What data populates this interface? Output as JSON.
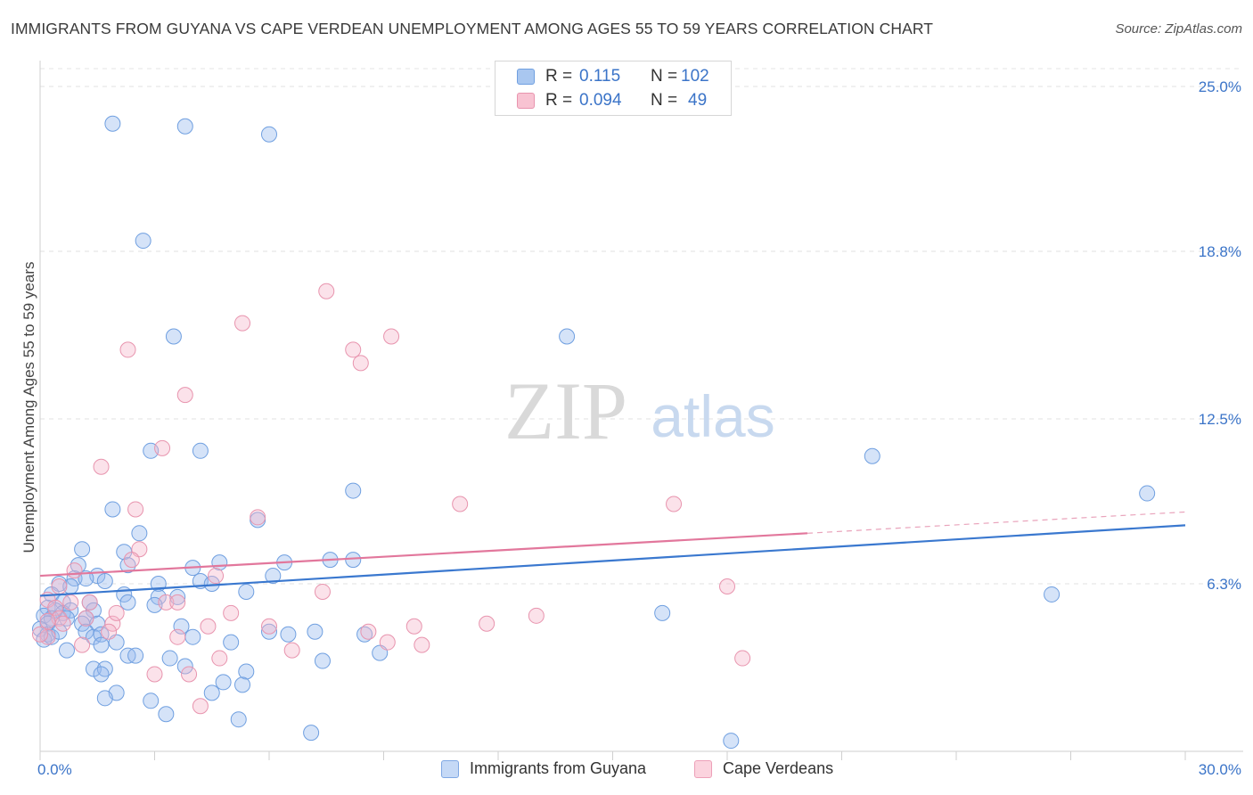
{
  "title": "IMMIGRANTS FROM GUYANA VS CAPE VERDEAN UNEMPLOYMENT AMONG AGES 55 TO 59 YEARS CORRELATION CHART",
  "source": "Source: ZipAtlas.com",
  "watermark": {
    "zip": "ZIP",
    "atlas": "atlas"
  },
  "legend": {
    "r_label": "R =",
    "n_label": "N =",
    "rows": [
      {
        "r": "0.115",
        "n": "102",
        "color": "#a9c7f0",
        "edge": "#6f9fe0"
      },
      {
        "r": "0.094",
        "n": "49",
        "color": "#f8c3d2",
        "edge": "#e894ae"
      }
    ]
  },
  "bottom_legend": [
    {
      "label": "Immigrants from Guyana",
      "color": "#c5d9f6",
      "edge": "#7fa8e4"
    },
    {
      "label": "Cape Verdeans",
      "color": "#fbd3de",
      "edge": "#eda0b8"
    }
  ],
  "chart_data": {
    "type": "scatter",
    "xlabel": "",
    "ylabel": "Unemployment Among Ages 55 to 59 years",
    "xlim": [
      0,
      30
    ],
    "ylim": [
      0,
      26
    ],
    "x_tick_labels": [
      "0.0%",
      "30.0%"
    ],
    "y_ticks": [
      6.3,
      12.5,
      18.8,
      25.0
    ],
    "y_tick_labels": [
      "6.3%",
      "12.5%",
      "18.8%",
      "25.0%"
    ],
    "grid": "horizontal dashed",
    "series": [
      {
        "name": "Immigrants from Guyana",
        "color": "#6f9fe0",
        "fill": "rgba(150,186,238,0.40)",
        "trend": {
          "x0": 0,
          "y0": 5.85,
          "x1": 30,
          "y1": 8.5
        },
        "points": [
          [
            1.9,
            23.6
          ],
          [
            3.8,
            23.5
          ],
          [
            6.0,
            23.2
          ],
          [
            2.7,
            19.2
          ],
          [
            3.5,
            15.6
          ],
          [
            13.8,
            15.6
          ],
          [
            2.9,
            11.3
          ],
          [
            4.2,
            11.3
          ],
          [
            21.8,
            11.1
          ],
          [
            8.2,
            9.8
          ],
          [
            1.9,
            9.1
          ],
          [
            29.0,
            9.7
          ],
          [
            5.7,
            8.7
          ],
          [
            2.6,
            8.2
          ],
          [
            1.1,
            7.6
          ],
          [
            2.2,
            7.5
          ],
          [
            4.7,
            7.1
          ],
          [
            6.4,
            7.1
          ],
          [
            7.6,
            7.2
          ],
          [
            8.2,
            7.2
          ],
          [
            1.0,
            7.0
          ],
          [
            2.3,
            7.0
          ],
          [
            4.0,
            6.9
          ],
          [
            1.5,
            6.6
          ],
          [
            0.9,
            6.5
          ],
          [
            1.2,
            6.5
          ],
          [
            1.7,
            6.4
          ],
          [
            0.5,
            6.3
          ],
          [
            3.1,
            6.3
          ],
          [
            4.2,
            6.4
          ],
          [
            4.5,
            6.3
          ],
          [
            0.8,
            6.2
          ],
          [
            6.1,
            6.6
          ],
          [
            0.3,
            5.9
          ],
          [
            2.2,
            5.9
          ],
          [
            3.1,
            5.8
          ],
          [
            5.4,
            6.0
          ],
          [
            26.5,
            5.9
          ],
          [
            3.6,
            5.8
          ],
          [
            0.6,
            5.6
          ],
          [
            2.3,
            5.6
          ],
          [
            3.0,
            5.5
          ],
          [
            1.3,
            5.6
          ],
          [
            0.2,
            5.4
          ],
          [
            0.4,
            5.3
          ],
          [
            0.6,
            5.2
          ],
          [
            0.8,
            5.3
          ],
          [
            1.4,
            5.3
          ],
          [
            0.1,
            5.1
          ],
          [
            0.3,
            5.0
          ],
          [
            0.7,
            5.0
          ],
          [
            1.2,
            5.0
          ],
          [
            0.2,
            4.8
          ],
          [
            1.1,
            4.8
          ],
          [
            1.5,
            4.8
          ],
          [
            3.7,
            4.7
          ],
          [
            6.0,
            4.5
          ],
          [
            6.5,
            4.4
          ],
          [
            7.2,
            4.5
          ],
          [
            8.5,
            4.4
          ],
          [
            16.3,
            5.2
          ],
          [
            0.0,
            4.6
          ],
          [
            0.2,
            4.4
          ],
          [
            0.1,
            4.2
          ],
          [
            0.3,
            4.3
          ],
          [
            0.5,
            4.5
          ],
          [
            1.2,
            4.5
          ],
          [
            1.4,
            4.3
          ],
          [
            1.6,
            4.4
          ],
          [
            4.0,
            4.3
          ],
          [
            1.6,
            4.0
          ],
          [
            2.0,
            4.1
          ],
          [
            0.7,
            3.8
          ],
          [
            5.0,
            4.1
          ],
          [
            8.9,
            3.7
          ],
          [
            2.3,
            3.6
          ],
          [
            2.5,
            3.6
          ],
          [
            3.4,
            3.5
          ],
          [
            7.4,
            3.4
          ],
          [
            1.4,
            3.1
          ],
          [
            1.7,
            3.1
          ],
          [
            3.8,
            3.2
          ],
          [
            5.4,
            3.0
          ],
          [
            1.6,
            2.9
          ],
          [
            4.8,
            2.6
          ],
          [
            5.3,
            2.5
          ],
          [
            2.0,
            2.2
          ],
          [
            4.5,
            2.2
          ],
          [
            1.7,
            2.0
          ],
          [
            2.9,
            1.9
          ],
          [
            3.3,
            1.4
          ],
          [
            5.2,
            1.2
          ],
          [
            7.1,
            0.7
          ],
          [
            18.1,
            0.4
          ]
        ]
      },
      {
        "name": "Cape Verdeans",
        "color": "#e894ae",
        "fill": "rgba(246,182,202,0.40)",
        "trend": {
          "x0": 0,
          "y0": 6.6,
          "x1": 20.1,
          "y1": 8.2,
          "dash_to_x": 30,
          "dash_to_y": 9.0
        },
        "points": [
          [
            7.5,
            17.3
          ],
          [
            5.3,
            16.1
          ],
          [
            9.2,
            15.6
          ],
          [
            2.3,
            15.1
          ],
          [
            8.2,
            15.1
          ],
          [
            8.4,
            14.6
          ],
          [
            3.8,
            13.4
          ],
          [
            3.2,
            11.4
          ],
          [
            1.6,
            10.7
          ],
          [
            11.0,
            9.3
          ],
          [
            16.6,
            9.3
          ],
          [
            2.5,
            9.1
          ],
          [
            5.7,
            8.8
          ],
          [
            2.6,
            7.6
          ],
          [
            2.4,
            7.2
          ],
          [
            0.9,
            6.8
          ],
          [
            4.6,
            6.6
          ],
          [
            18.0,
            6.2
          ],
          [
            7.4,
            6.0
          ],
          [
            0.5,
            6.2
          ],
          [
            0.2,
            5.7
          ],
          [
            3.3,
            5.6
          ],
          [
            3.6,
            5.6
          ],
          [
            0.8,
            5.6
          ],
          [
            1.3,
            5.6
          ],
          [
            0.4,
            5.4
          ],
          [
            5.0,
            5.2
          ],
          [
            13.0,
            5.1
          ],
          [
            0.5,
            5.0
          ],
          [
            1.2,
            5.0
          ],
          [
            0.2,
            4.9
          ],
          [
            1.9,
            4.8
          ],
          [
            0.6,
            4.8
          ],
          [
            2.0,
            5.2
          ],
          [
            6.0,
            4.7
          ],
          [
            9.8,
            4.7
          ],
          [
            4.4,
            4.7
          ],
          [
            11.7,
            4.8
          ],
          [
            1.8,
            4.5
          ],
          [
            3.6,
            4.3
          ],
          [
            8.6,
            4.5
          ],
          [
            9.1,
            4.1
          ],
          [
            0.2,
            4.3
          ],
          [
            0.0,
            4.4
          ],
          [
            1.1,
            4.0
          ],
          [
            10.0,
            4.0
          ],
          [
            4.7,
            3.5
          ],
          [
            6.6,
            3.8
          ],
          [
            18.4,
            3.5
          ],
          [
            3.0,
            2.9
          ],
          [
            3.9,
            2.9
          ],
          [
            4.2,
            1.7
          ]
        ]
      }
    ]
  }
}
